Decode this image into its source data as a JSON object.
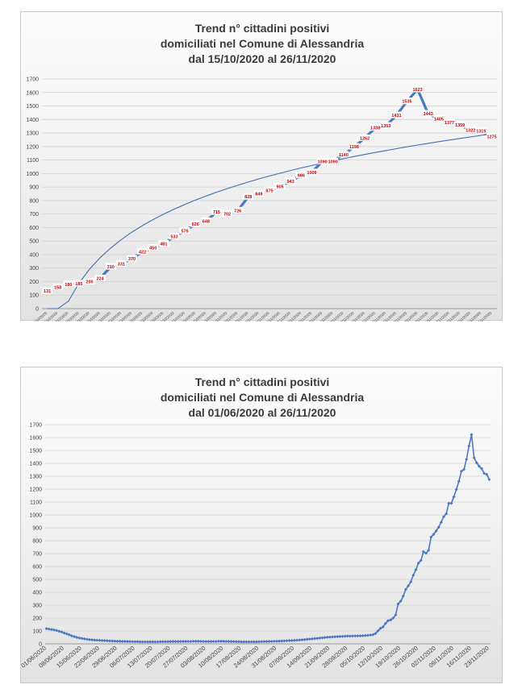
{
  "charts": [
    {
      "title_lines": [
        "Trend n° cittadini positivi",
        "domiciliati nel Comune di Alessandria",
        "dal 15/10/2020 al 26/11/2020"
      ],
      "y_ticks": [
        "0",
        "100",
        "200",
        "300",
        "400",
        "500",
        "600",
        "700",
        "800",
        "900",
        "1000",
        "1100",
        "1200",
        "1300",
        "1400",
        "1500",
        "1600",
        "1700"
      ],
      "x_ticks": [
        "15/10/2020",
        "16/10/2020",
        "17/10/2020",
        "18/10/2020",
        "19/10/2020",
        "20/10/2020",
        "21/10/2020",
        "22/10/2020",
        "23/10/2020",
        "24/10/2020",
        "25/10/2020",
        "26/10/2020",
        "27/10/2020",
        "28/10/2020",
        "29/10/2020",
        "30/10/2020",
        "31/10/2020",
        "01/11/2020",
        "02/11/2020",
        "03/11/2020",
        "04/11/2020",
        "05/11/2020",
        "06/11/2020",
        "07/11/2020",
        "08/11/2020",
        "09/11/2020",
        "10/11/2020",
        "11/11/2020",
        "12/11/2020",
        "13/11/2020",
        "14/11/2020",
        "15/11/2020",
        "16/11/2020",
        "17/11/2020",
        "18/11/2020",
        "19/11/2020",
        "20/11/2020",
        "21/11/2020",
        "22/11/2020",
        "23/11/2020",
        "24/11/2020",
        "25/11/2020",
        "26/11/2020"
      ],
      "data_labels": [
        "131",
        "158",
        "180",
        "185",
        "200",
        "224",
        "310",
        "331",
        "370",
        "422",
        "450",
        "481",
        "533",
        "575",
        "626",
        "648",
        "715",
        "702",
        "726",
        "828",
        "849",
        "875",
        "905",
        "943",
        "986",
        "1009",
        "1090",
        "1090",
        "1140",
        "1198",
        "1262",
        "1338",
        "1353",
        "1431",
        "1535",
        "1623",
        "1443",
        "1405",
        "1377",
        "1359",
        "1322",
        "1315",
        "1275"
      ]
    },
    {
      "title_lines": [
        "Trend n° cittadini positivi",
        "domiciliati nel Comune di Alessandria",
        "dal 01/06/2020 al 26/11/2020"
      ],
      "y_ticks": [
        "0",
        "100",
        "200",
        "300",
        "400",
        "500",
        "600",
        "700",
        "800",
        "900",
        "1000",
        "1100",
        "1200",
        "1300",
        "1400",
        "1500",
        "1600",
        "1700"
      ],
      "x_ticks": [
        "01/06/2020",
        "08/06/2020",
        "15/06/2020",
        "22/06/2020",
        "29/06/2020",
        "06/07/2020",
        "13/07/2020",
        "20/07/2020",
        "27/07/2020",
        "03/08/2020",
        "10/08/2020",
        "17/08/2020",
        "24/08/2020",
        "31/08/2020",
        "07/09/2020",
        "14/09/2020",
        "21/09/2020",
        "28/09/2020",
        "05/10/2020",
        "12/10/2020",
        "19/10/2020",
        "26/10/2020",
        "02/11/2020",
        "09/11/2020",
        "16/11/2020",
        "23/11/2020"
      ]
    }
  ],
  "chart_data": [
    {
      "type": "line",
      "title": "Trend n° cittadini positivi domiciliati nel Comune di Alessandria dal 15/10/2020 al 26/11/2020",
      "ylim": [
        0,
        1700
      ],
      "grid": true,
      "trendline": "logarithmic",
      "x": [
        "15/10/2020",
        "16/10/2020",
        "17/10/2020",
        "18/10/2020",
        "19/10/2020",
        "20/10/2020",
        "21/10/2020",
        "22/10/2020",
        "23/10/2020",
        "24/10/2020",
        "25/10/2020",
        "26/10/2020",
        "27/10/2020",
        "28/10/2020",
        "29/10/2020",
        "30/10/2020",
        "31/10/2020",
        "01/11/2020",
        "02/11/2020",
        "03/11/2020",
        "04/11/2020",
        "05/11/2020",
        "06/11/2020",
        "07/11/2020",
        "08/11/2020",
        "09/11/2020",
        "10/11/2020",
        "11/11/2020",
        "12/11/2020",
        "13/11/2020",
        "14/11/2020",
        "15/11/2020",
        "16/11/2020",
        "17/11/2020",
        "18/11/2020",
        "19/11/2020",
        "20/11/2020",
        "21/11/2020",
        "22/11/2020",
        "23/11/2020",
        "24/11/2020",
        "25/11/2020",
        "26/11/2020"
      ],
      "values": [
        131,
        158,
        180,
        185,
        200,
        224,
        310,
        331,
        370,
        422,
        450,
        481,
        533,
        575,
        626,
        648,
        715,
        702,
        726,
        828,
        849,
        875,
        905,
        943,
        986,
        1009,
        1090,
        1090,
        1140,
        1198,
        1262,
        1338,
        1353,
        1431,
        1535,
        1623,
        1443,
        1405,
        1377,
        1359,
        1322,
        1315,
        1275
      ]
    },
    {
      "type": "line",
      "title": "Trend n° cittadini positivi domiciliati nel Comune di Alessandria dal 01/06/2020 al 26/11/2020",
      "ylim": [
        0,
        1700
      ],
      "grid": true,
      "x_start": "01/06/2020",
      "x_end": "26/11/2020",
      "values": [
        118,
        115,
        112,
        108,
        104,
        98,
        92,
        84,
        78,
        70,
        62,
        56,
        50,
        46,
        42,
        38,
        35,
        33,
        31,
        29,
        28,
        27,
        26,
        25,
        24,
        23,
        22,
        21,
        20,
        20,
        19,
        19,
        18,
        18,
        17,
        17,
        17,
        16,
        16,
        16,
        16,
        16,
        16,
        16,
        16,
        17,
        17,
        17,
        17,
        18,
        18,
        18,
        18,
        18,
        19,
        19,
        19,
        19,
        20,
        20,
        20,
        19,
        19,
        18,
        18,
        18,
        19,
        19,
        20,
        20,
        20,
        19,
        19,
        18,
        18,
        17,
        17,
        16,
        16,
        16,
        16,
        16,
        16,
        16,
        17,
        17,
        18,
        18,
        19,
        19,
        20,
        20,
        21,
        22,
        23,
        24,
        25,
        26,
        27,
        28,
        30,
        31,
        33,
        35,
        37,
        39,
        41,
        43,
        45,
        47,
        49,
        51,
        52,
        54,
        55,
        56,
        57,
        58,
        59,
        60,
        60,
        61,
        61,
        62,
        62,
        63,
        64,
        66,
        68,
        71,
        80,
        100,
        120,
        131,
        158,
        180,
        185,
        200,
        224,
        310,
        331,
        370,
        422,
        450,
        481,
        533,
        575,
        626,
        648,
        715,
        702,
        726,
        828,
        849,
        875,
        905,
        943,
        986,
        1009,
        1090,
        1090,
        1140,
        1198,
        1262,
        1338,
        1353,
        1431,
        1535,
        1623,
        1443,
        1405,
        1377,
        1359,
        1322,
        1315,
        1275
      ]
    }
  ]
}
